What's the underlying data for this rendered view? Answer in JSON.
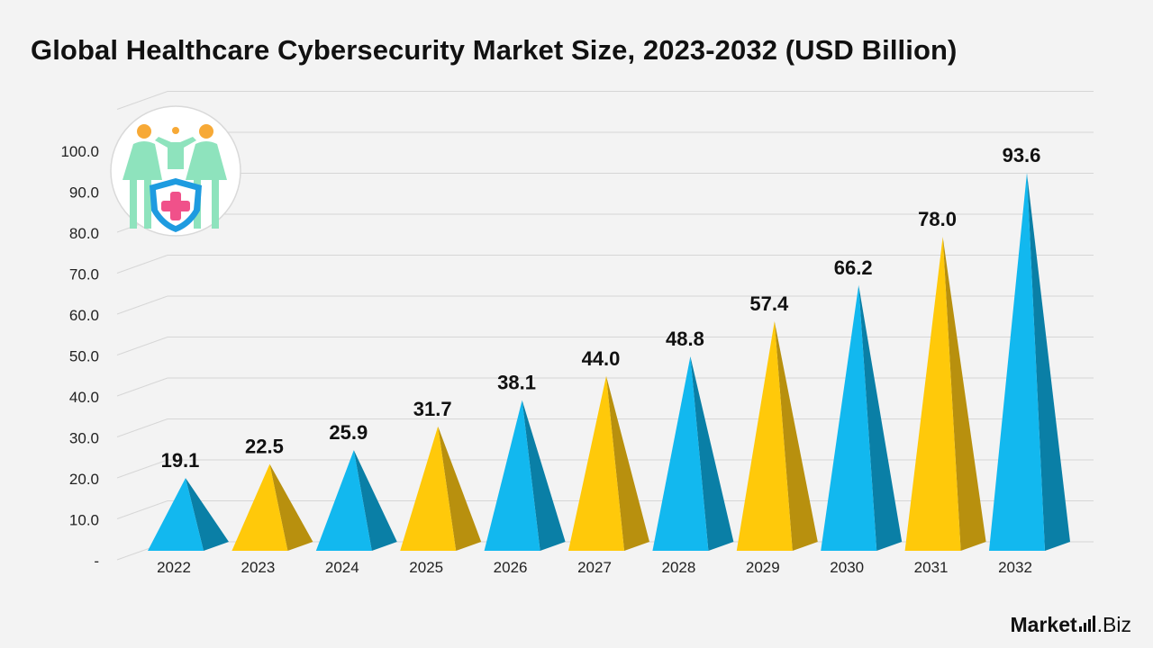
{
  "title": "Global Healthcare Cybersecurity Market Size, 2023-2032 (USD Billion)",
  "brand": {
    "name": "Market",
    "suffix": ".Biz"
  },
  "icon": "healthcare-family-shield-icon",
  "colors": {
    "blue": "#12b8ef",
    "blue_dark": "#0a7fa6",
    "yellow": "#ffc90a",
    "yellow_dark": "#b8900e",
    "grid": "#d6d6d6",
    "background": "#f3f3f3"
  },
  "chart_data": {
    "type": "bar",
    "shape": "pyramid",
    "title": "Global Healthcare Cybersecurity Market Size, 2023-2032 (USD Billion)",
    "categories": [
      "2022",
      "2023",
      "2024",
      "2025",
      "2026",
      "2027",
      "2028",
      "2029",
      "2030",
      "2031",
      "2032"
    ],
    "values": [
      19.1,
      22.5,
      25.9,
      31.7,
      38.1,
      44.0,
      48.8,
      57.4,
      66.2,
      78.0,
      93.6
    ],
    "value_labels": [
      "19.1",
      "22.5",
      "25.9",
      "31.7",
      "38.1",
      "44.0",
      "48.8",
      "57.4",
      "66.2",
      "78.0",
      "93.6"
    ],
    "bar_colors": [
      "blue",
      "yellow",
      "blue",
      "yellow",
      "blue",
      "yellow",
      "blue",
      "yellow",
      "blue",
      "yellow",
      "blue"
    ],
    "ytick_labels": [
      "-",
      "10.0",
      "20.0",
      "30.0",
      "40.0",
      "50.0",
      "60.0",
      "70.0",
      "80.0",
      "90.0",
      "100.0"
    ],
    "ylim": [
      0,
      100
    ],
    "ystep": 10,
    "xlabel": "",
    "ylabel": "",
    "grid": true,
    "legend": "none"
  }
}
